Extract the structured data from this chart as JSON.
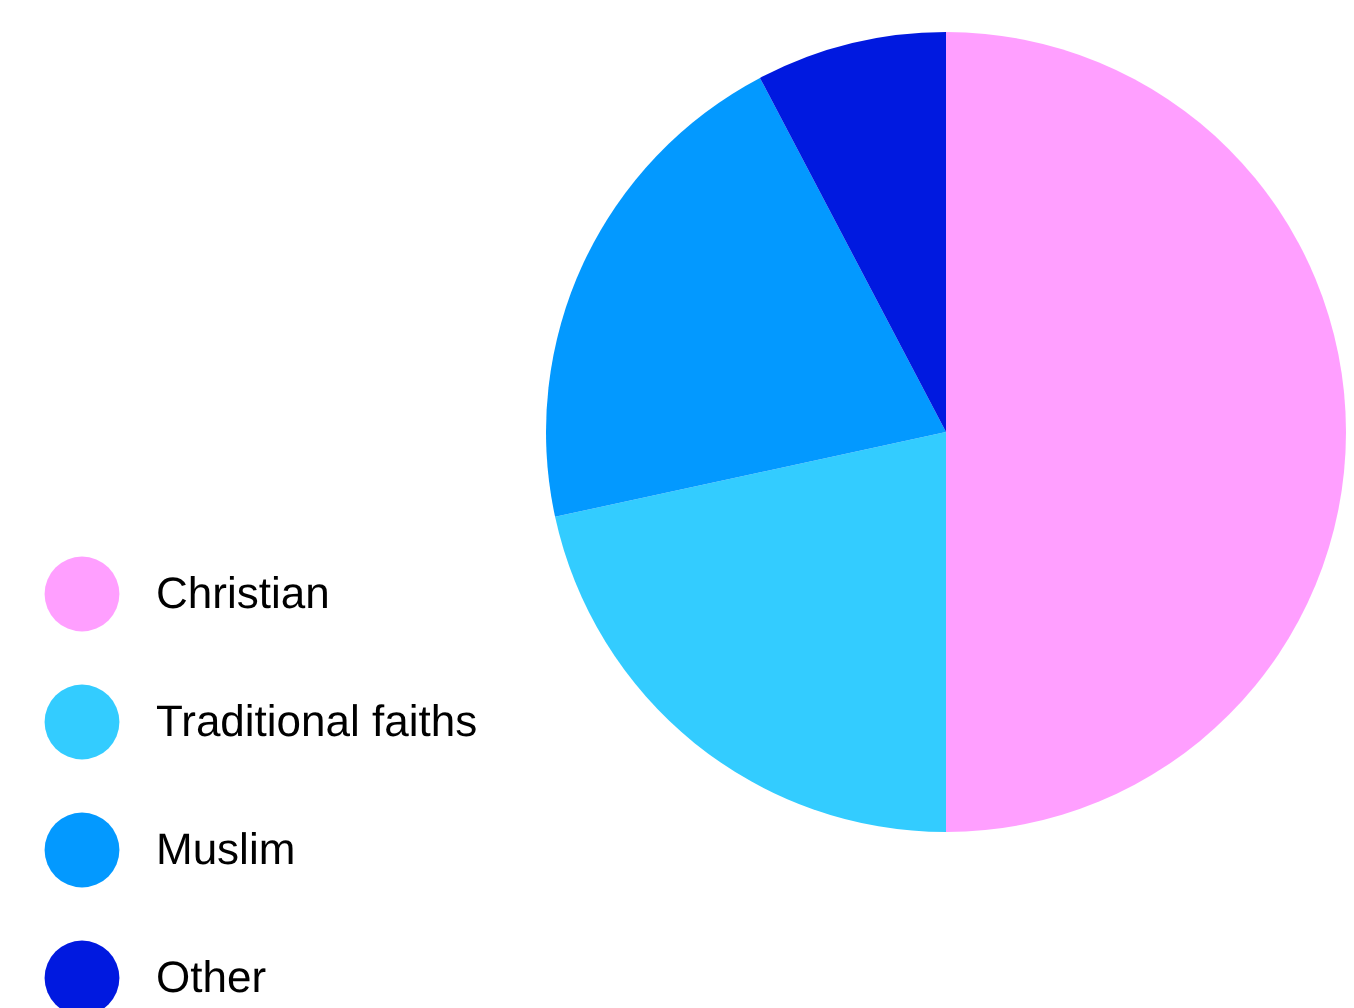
{
  "chart_data": {
    "type": "pie",
    "categories": [
      "Christian",
      "Traditional faiths",
      "Muslim",
      "Other"
    ],
    "values": [
      50,
      21.6,
      20.7,
      7.7
    ],
    "colors": [
      "#ff9fff",
      "#33ccff",
      "#0399ff",
      "#0019e0"
    ],
    "legend": "bottom left"
  }
}
